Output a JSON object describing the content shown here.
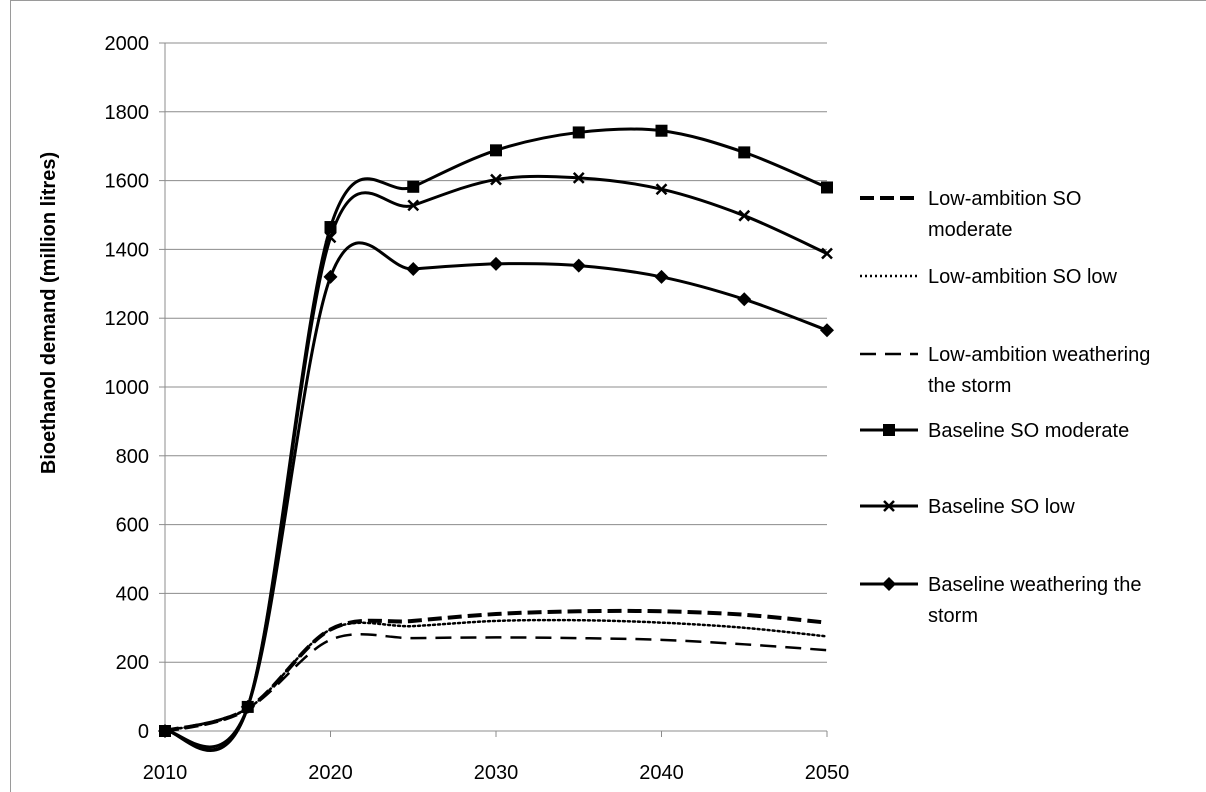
{
  "chart_data": {
    "type": "line",
    "title": "",
    "xlabel": "",
    "ylabel": "Bioethanol demand (million litres)",
    "x": [
      2010,
      2015,
      2020,
      2025,
      2030,
      2035,
      2040,
      2045,
      2050
    ],
    "xlim": [
      2010,
      2050
    ],
    "ylim": [
      0,
      2000
    ],
    "x_ticks": [
      "2010",
      "2020",
      "2030",
      "2040",
      "2050"
    ],
    "y_ticks": [
      "0",
      "200",
      "400",
      "600",
      "800",
      "1000",
      "1200",
      "1400",
      "1600",
      "1800",
      "2000"
    ],
    "grid": "horizontal",
    "legend_position": "right",
    "series": [
      {
        "name": "Low-ambition SO moderate",
        "legend_lines": [
          "Low-ambition SO",
          "moderate"
        ],
        "style": "dash-thick",
        "marker": "none",
        "values": [
          0,
          65,
          295,
          320,
          340,
          348,
          348,
          338,
          315
        ]
      },
      {
        "name": "Low-ambition SO low",
        "legend_lines": [
          "Low-ambition SO low"
        ],
        "style": "dotted",
        "marker": "none",
        "values": [
          0,
          65,
          295,
          305,
          320,
          322,
          315,
          300,
          275
        ]
      },
      {
        "name": "Low-ambition weathering the storm",
        "legend_lines": [
          "Low-ambition weathering",
          "the storm"
        ],
        "style": "dash-thin",
        "marker": "none",
        "values": [
          0,
          65,
          265,
          270,
          272,
          270,
          265,
          252,
          235
        ]
      },
      {
        "name": "Baseline SO moderate",
        "legend_lines": [
          "Baseline SO moderate"
        ],
        "style": "solid",
        "marker": "square",
        "values": [
          0,
          70,
          1465,
          1582,
          1688,
          1740,
          1745,
          1682,
          1580
        ]
      },
      {
        "name": "Baseline SO low",
        "legend_lines": [
          "Baseline SO low"
        ],
        "style": "solid",
        "marker": "x",
        "values": [
          0,
          70,
          1435,
          1528,
          1603,
          1608,
          1575,
          1498,
          1388
        ]
      },
      {
        "name": "Baseline weathering the storm",
        "legend_lines": [
          "Baseline weathering the",
          "storm"
        ],
        "style": "solid",
        "marker": "diamond",
        "values": [
          0,
          70,
          1320,
          1343,
          1358,
          1353,
          1320,
          1255,
          1165
        ]
      }
    ]
  }
}
